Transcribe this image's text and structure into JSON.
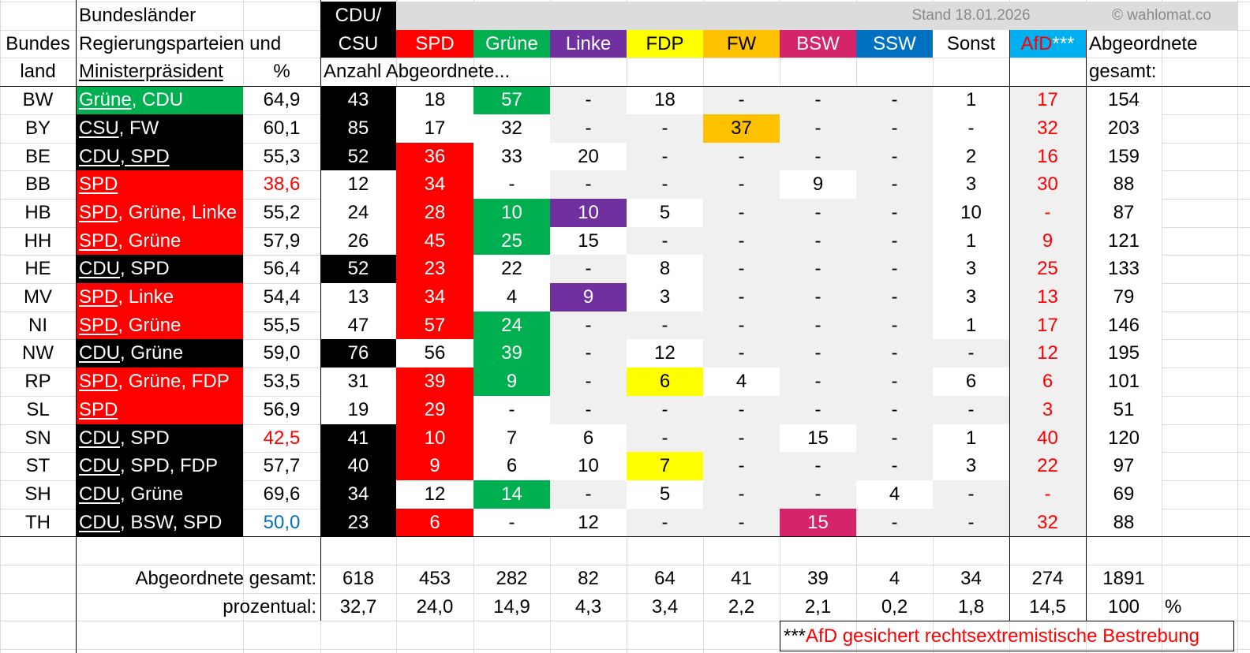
{
  "header": {
    "row1_states": "Bundesländer",
    "row1_cdu": "CDU/",
    "stand": "Stand 18.01.2026",
    "source": "© wahlomat.co",
    "row2_states": "Bundes",
    "row2_govt": "Regierungsparteien und",
    "row2_cdu": "CSU",
    "row3_states": "land",
    "row3_govt": "Ministerpräsident",
    "row3_pct": "%",
    "row3_count": "Anzahl Abgeordnete...",
    "row3_total": "gesamt:",
    "parties": [
      "SPD",
      "Grüne",
      "Linke",
      "FDP",
      "FW",
      "BSW",
      "SSW",
      "Sonst"
    ],
    "afd": "AfD",
    "afd_mark": "***",
    "total_label": "Abgeordnete"
  },
  "colors": {
    "cdu": "#000000",
    "spd": "#ff0000",
    "gruene": "#00b050",
    "linke": "#7030a0",
    "fdp": "#ffff00",
    "fw": "#ffc000",
    "bsw": "#d6246b",
    "ssw": "#0070c0",
    "afd_header": "#00b0f0",
    "afd_text": "#ff0000",
    "grey": "#f0f0f0",
    "red_value": "#ff0000",
    "blue_value": "#0070c0"
  },
  "rows": [
    {
      "land": "BW",
      "mp": "Grüne",
      "rest": ", CDU",
      "pct": "64,9",
      "cdu": "43",
      "spd": "18",
      "gruene": "57",
      "linke": "-",
      "fdp": "18",
      "fw": "-",
      "bsw": "-",
      "ssw": "-",
      "sonst": "1",
      "afd": "17",
      "total": "154"
    },
    {
      "land": "BY",
      "mp": "CSU",
      "rest": ", FW",
      "pct": "60,1",
      "cdu": "85",
      "spd": "17",
      "gruene": "32",
      "linke": "-",
      "fdp": "-",
      "fw": "37",
      "bsw": "-",
      "ssw": "-",
      "sonst": "-",
      "afd": "32",
      "total": "203"
    },
    {
      "land": "BE",
      "mp": "CDU, SPD",
      "rest": "",
      "pct": "55,3",
      "cdu": "52",
      "spd": "36",
      "gruene": "33",
      "linke": "20",
      "fdp": "-",
      "fw": "-",
      "bsw": "-",
      "ssw": "-",
      "sonst": "2",
      "afd": "16",
      "total": "159"
    },
    {
      "land": "BB",
      "mp": "SPD",
      "rest": "",
      "pct": "38,6",
      "cdu": "12",
      "spd": "34",
      "gruene": "-",
      "linke": "-",
      "fdp": "-",
      "fw": "-",
      "bsw": "9",
      "ssw": "-",
      "sonst": "3",
      "afd": "30",
      "total": "88"
    },
    {
      "land": "HB",
      "mp": "SPD",
      "rest": ", Grüne, Linke",
      "pct": "55,2",
      "cdu": "24",
      "spd": "28",
      "gruene": "10",
      "linke": "10",
      "fdp": "5",
      "fw": "-",
      "bsw": "-",
      "ssw": "-",
      "sonst": "10",
      "afd": "-",
      "total": "87"
    },
    {
      "land": "HH",
      "mp": "SPD",
      "rest": ", Grüne",
      "pct": "57,9",
      "cdu": "26",
      "spd": "45",
      "gruene": "25",
      "linke": "15",
      "fdp": "-",
      "fw": "-",
      "bsw": "-",
      "ssw": "-",
      "sonst": "1",
      "afd": "9",
      "total": "121"
    },
    {
      "land": "HE",
      "mp": "CDU",
      "rest": ", SPD",
      "pct": "56,4",
      "cdu": "52",
      "spd": "23",
      "gruene": "22",
      "linke": "-",
      "fdp": "8",
      "fw": "-",
      "bsw": "-",
      "ssw": "-",
      "sonst": "3",
      "afd": "25",
      "total": "133"
    },
    {
      "land": "MV",
      "mp": "SPD",
      "rest": ", Linke",
      "pct": "54,4",
      "cdu": "13",
      "spd": "34",
      "gruene": "4",
      "linke": "9",
      "fdp": "3",
      "fw": "-",
      "bsw": "-",
      "ssw": "-",
      "sonst": "3",
      "afd": "13",
      "total": "79"
    },
    {
      "land": "NI",
      "mp": "SPD",
      "rest": ", Grüne",
      "pct": "55,5",
      "cdu": "47",
      "spd": "57",
      "gruene": "24",
      "linke": "-",
      "fdp": "-",
      "fw": "-",
      "bsw": "-",
      "ssw": "-",
      "sonst": "1",
      "afd": "17",
      "total": "146"
    },
    {
      "land": "NW",
      "mp": "CDU",
      "rest": ", Grüne",
      "pct": "59,0",
      "cdu": "76",
      "spd": "56",
      "gruene": "39",
      "linke": "-",
      "fdp": "12",
      "fw": "-",
      "bsw": "-",
      "ssw": "-",
      "sonst": "-",
      "afd": "12",
      "total": "195"
    },
    {
      "land": "RP",
      "mp": "SPD",
      "rest": ", Grüne, FDP",
      "pct": "53,5",
      "cdu": "31",
      "spd": "39",
      "gruene": "9",
      "linke": "-",
      "fdp": "6",
      "fw": "4",
      "bsw": "-",
      "ssw": "-",
      "sonst": "6",
      "afd": "6",
      "total": "101"
    },
    {
      "land": "SL",
      "mp": "SPD",
      "rest": "",
      "pct": "56,9",
      "cdu": "19",
      "spd": "29",
      "gruene": "-",
      "linke": "-",
      "fdp": "-",
      "fw": "-",
      "bsw": "-",
      "ssw": "-",
      "sonst": "-",
      "afd": "3",
      "total": "51"
    },
    {
      "land": "SN",
      "mp": "CDU",
      "rest": ", SPD",
      "pct": "42,5",
      "cdu": "41",
      "spd": "10",
      "gruene": "7",
      "linke": "6",
      "fdp": "-",
      "fw": "-",
      "bsw": "15",
      "ssw": "-",
      "sonst": "1",
      "afd": "40",
      "total": "120"
    },
    {
      "land": "ST",
      "mp": "CDU",
      "rest": ", SPD, FDP",
      "pct": "57,7",
      "cdu": "40",
      "spd": "9",
      "gruene": "6",
      "linke": "10",
      "fdp": "7",
      "fw": "-",
      "bsw": "-",
      "ssw": "-",
      "sonst": "3",
      "afd": "22",
      "total": "97"
    },
    {
      "land": "SH",
      "mp": "CDU",
      "rest": ", Grüne",
      "pct": "69,6",
      "cdu": "34",
      "spd": "12",
      "gruene": "14",
      "linke": "-",
      "fdp": "5",
      "fw": "-",
      "bsw": "-",
      "ssw": "4",
      "sonst": "-",
      "afd": "-",
      "total": "69"
    },
    {
      "land": "TH",
      "mp": "CDU",
      "rest": ", BSW, SPD",
      "pct": "50,0",
      "cdu": "23",
      "spd": "6",
      "gruene": "-",
      "linke": "12",
      "fdp": "-",
      "fw": "-",
      "bsw": "15",
      "ssw": "-",
      "sonst": "-",
      "afd": "32",
      "total": "88"
    }
  ],
  "totals": {
    "label_total": "Abgeordnete gesamt:",
    "label_pct": "prozentual:",
    "values": [
      "618",
      "453",
      "282",
      "82",
      "64",
      "41",
      "39",
      "4",
      "34",
      "274",
      "1891"
    ],
    "pcts": [
      "32,7",
      "24,0",
      "14,9",
      "4,3",
      "3,4",
      "2,2",
      "2,1",
      "0,2",
      "1,8",
      "14,5",
      "100"
    ],
    "pct_unit": "%"
  },
  "footnote": {
    "stars": "***",
    "text": "AfD gesichert rechtsextremistische Bestrebung"
  }
}
